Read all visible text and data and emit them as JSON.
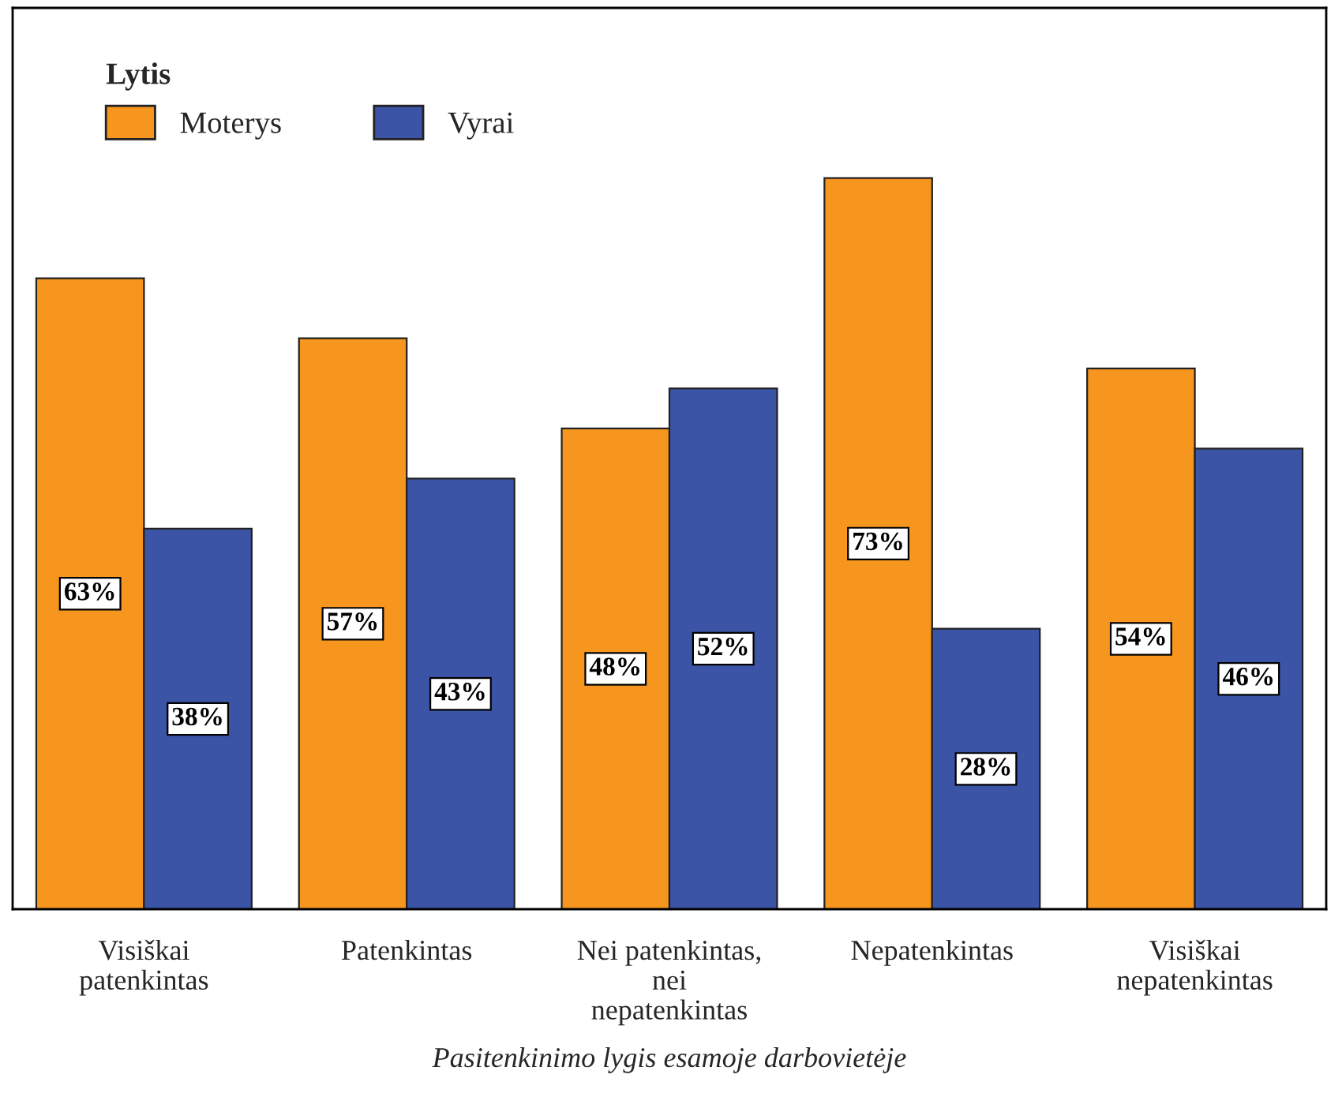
{
  "chart_data": {
    "type": "bar",
    "xlabel": "Pasitenkinimo lygis esamoje darbovietėje",
    "legend_title": "Lytis",
    "legend": "top left",
    "grid": false,
    "ylim": [
      0,
      90
    ],
    "categories": [
      "Visiškai\npatenkintas",
      "Patenkintas",
      "Nei patenkintas,\nnei\nnepatenkintas",
      "Nepatenkintas",
      "Visiškai\nnepatenkintas"
    ],
    "series": [
      {
        "name": "Moterys",
        "color": "#f7961f",
        "values": [
          63,
          57,
          48,
          73,
          54
        ],
        "value_labels": [
          "63%",
          "57%",
          "48%",
          "73%",
          "54%"
        ]
      },
      {
        "name": "Vyrai",
        "color": "#3b54a6",
        "values": [
          38,
          43,
          52,
          28,
          46
        ],
        "value_labels": [
          "38%",
          "43%",
          "52%",
          "28%",
          "46%"
        ]
      }
    ]
  }
}
